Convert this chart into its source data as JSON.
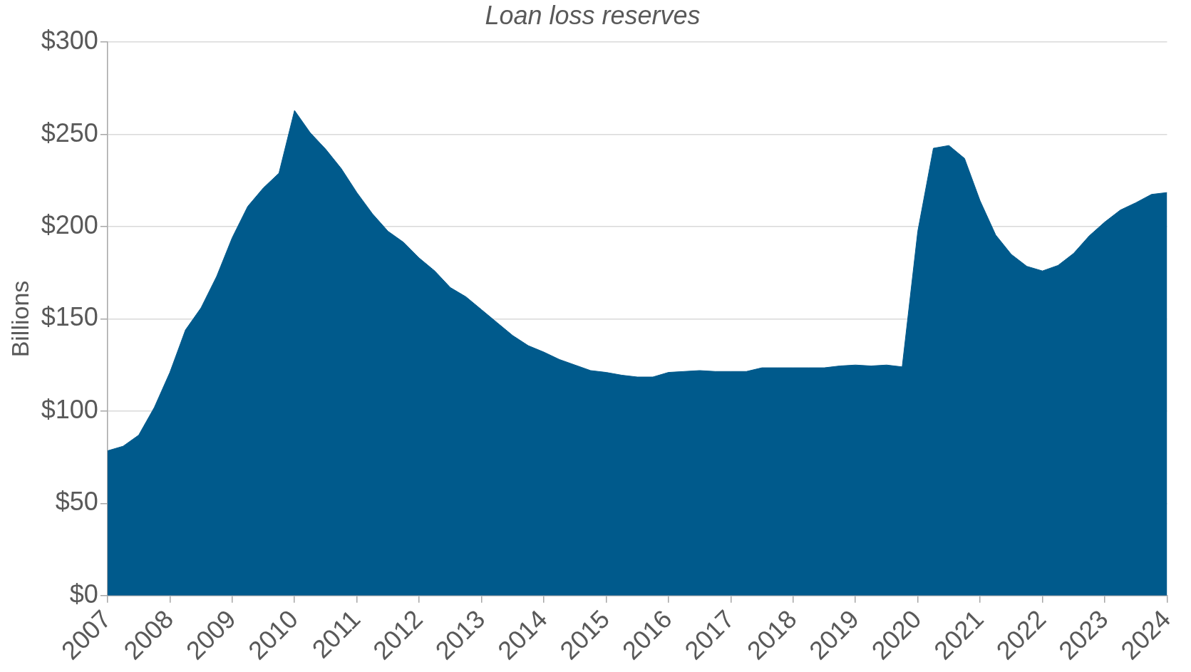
{
  "chart_data": {
    "type": "area",
    "title": "Loan loss reserves",
    "ylabel": "Billions",
    "x": [
      2007,
      2007.25,
      2007.5,
      2007.75,
      2008,
      2008.25,
      2008.5,
      2008.75,
      2009,
      2009.25,
      2009.5,
      2009.75,
      2010,
      2010.25,
      2010.5,
      2010.75,
      2011,
      2011.25,
      2011.5,
      2011.75,
      2012,
      2012.25,
      2012.5,
      2012.75,
      2013,
      2013.25,
      2013.5,
      2013.75,
      2014,
      2014.25,
      2014.5,
      2014.75,
      2015,
      2015.25,
      2015.5,
      2015.75,
      2016,
      2016.25,
      2016.5,
      2016.75,
      2017,
      2017.25,
      2017.5,
      2017.75,
      2018,
      2018.25,
      2018.5,
      2018.75,
      2019,
      2019.25,
      2019.5,
      2019.75,
      2020,
      2020.25,
      2020.5,
      2020.75,
      2021,
      2021.25,
      2021.5,
      2021.75,
      2022,
      2022.25,
      2022.5,
      2022.75,
      2023,
      2023.25,
      2023.5,
      2023.75,
      2024
    ],
    "series": [
      {
        "color": "#005a8c",
        "values": [
          78.5,
          81,
          87,
          102,
          121,
          144,
          156,
          173,
          194,
          211,
          221,
          229,
          263,
          251,
          242,
          231.5,
          218.5,
          207,
          197.5,
          191.5,
          183,
          176,
          167,
          162,
          155,
          148,
          141,
          135.5,
          132,
          128,
          125,
          122,
          121,
          119.5,
          118.5,
          118.5,
          121,
          121.5,
          122,
          121.5,
          121.5,
          121.5,
          123.5,
          123.5,
          123.5,
          123.5,
          123.5,
          124.5,
          125,
          124.5,
          125,
          124,
          197.5,
          242.5,
          244,
          237,
          214,
          195.5,
          185,
          178.5,
          176,
          179,
          185.5,
          195,
          202.5,
          209,
          213,
          217.5,
          218.5
        ]
      }
    ],
    "xlim": [
      2007,
      2024
    ],
    "xticks": [
      2007,
      2008,
      2009,
      2010,
      2011,
      2012,
      2013,
      2014,
      2015,
      2016,
      2017,
      2018,
      2019,
      2020,
      2021,
      2022,
      2023,
      2024
    ],
    "ylim": [
      0,
      300
    ],
    "yticks": [
      {
        "value": 0,
        "label": "$0"
      },
      {
        "value": 50,
        "label": "$50"
      },
      {
        "value": 100,
        "label": "$100"
      },
      {
        "value": 150,
        "label": "$150"
      },
      {
        "value": 200,
        "label": "$200"
      },
      {
        "value": 250,
        "label": "$250"
      },
      {
        "value": 300,
        "label": "$300"
      }
    ],
    "grid": "y"
  }
}
